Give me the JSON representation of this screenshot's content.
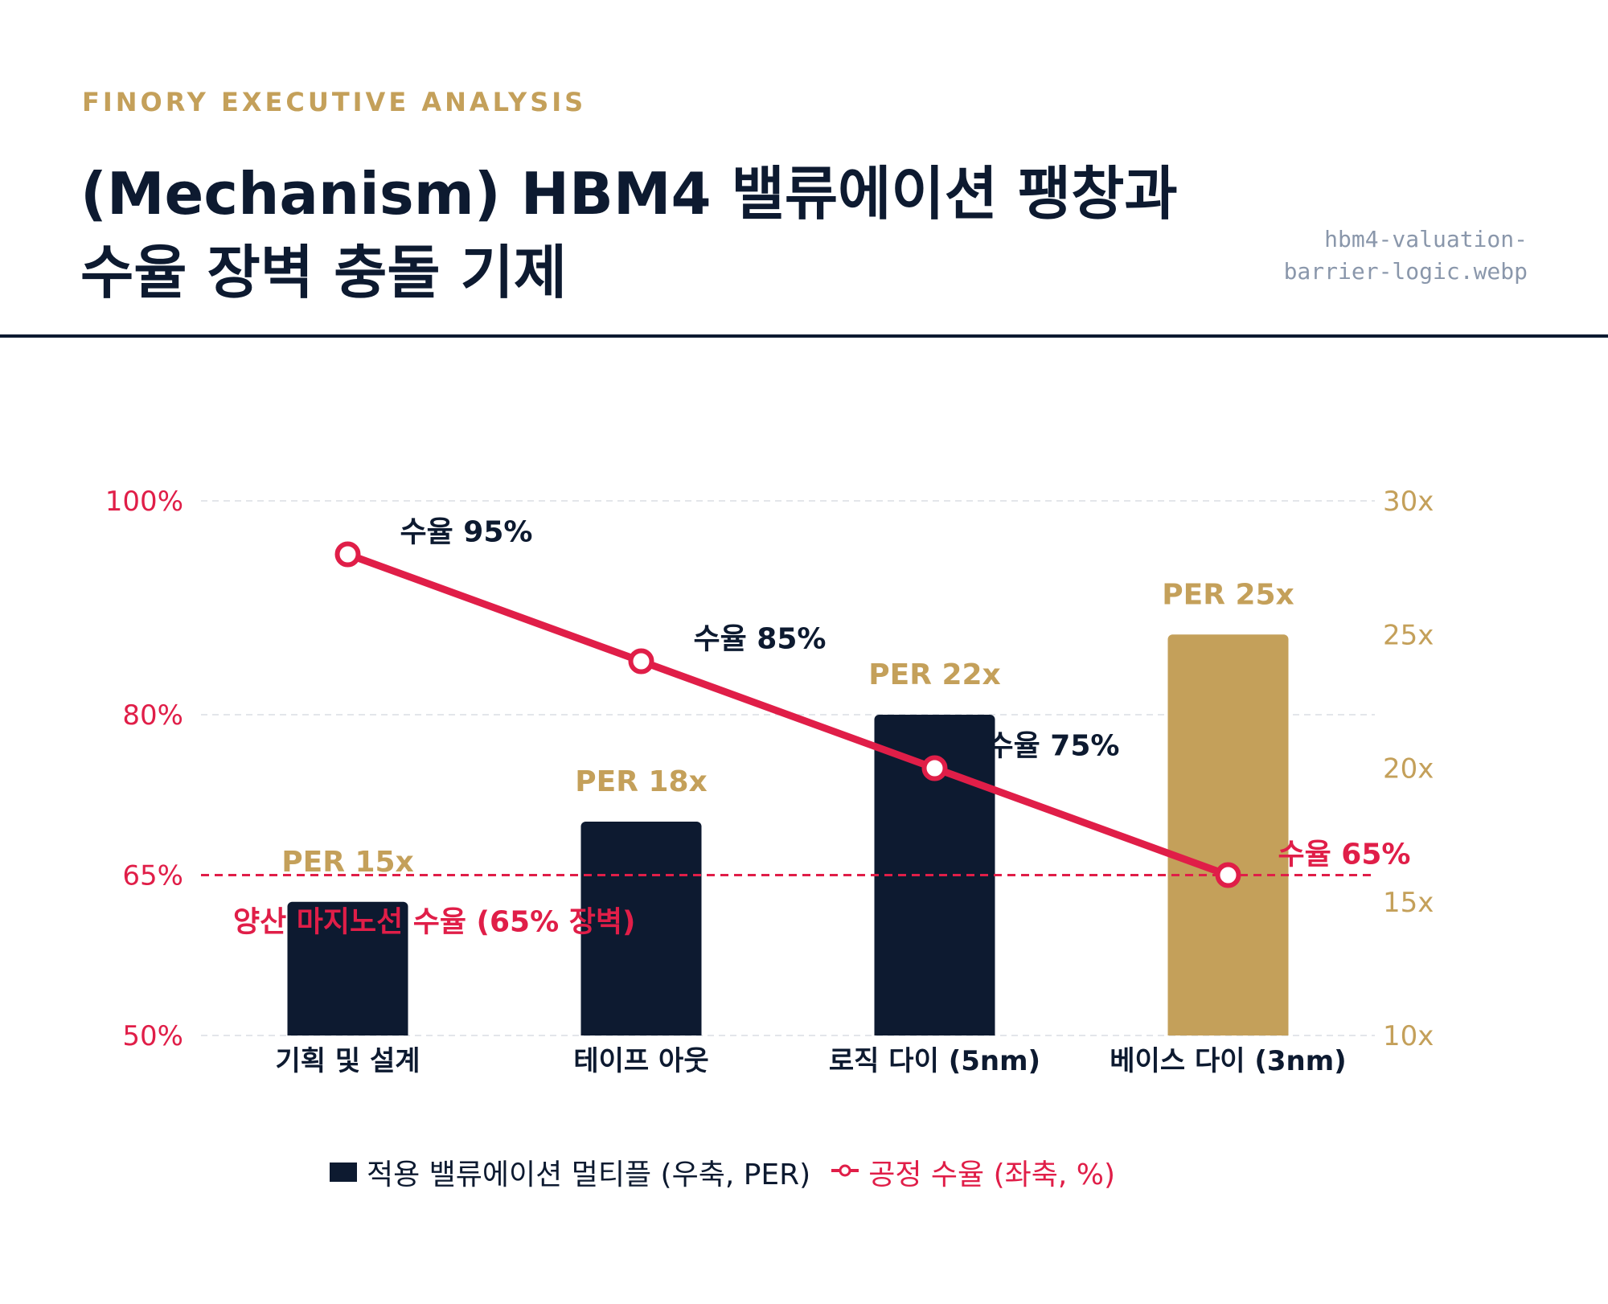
{
  "header": {
    "kicker": "FINORY EXECUTIVE ANALYSIS",
    "title_line1": "(Mechanism) HBM4 밸류에이션 팽창과",
    "title_line2": "수율 장벽 충돌 기제",
    "filename_line1": "hbm4-valuation-",
    "filename_line2": "barrier-logic.webp"
  },
  "colors": {
    "navy": "#0d1a30",
    "gold": "#c4a05a",
    "crimson": "#e01e48",
    "grid": "#e3e6ea"
  },
  "chart_data": {
    "type": "bar",
    "categories": [
      "기획 및 설계",
      "테이프 아웃",
      "로직 다이 (5nm)",
      "베이스 다이 (3nm)"
    ],
    "series": [
      {
        "name": "적용 밸류에이션 멀티플 (우축, PER)",
        "type": "bar",
        "axis": "right",
        "values": [
          15,
          18,
          22,
          25
        ],
        "labels": [
          "PER 15x",
          "PER 18x",
          "PER 22x",
          "PER 25x"
        ],
        "colors": [
          "#0d1a30",
          "#0d1a30",
          "#0d1a30",
          "#c4a05a"
        ]
      },
      {
        "name": "공정 수율 (좌축, %)",
        "type": "line",
        "axis": "left",
        "values": [
          95,
          85,
          75,
          65
        ],
        "labels": [
          "수율 95%",
          "수율 85%",
          "수율 75%",
          "수율 65%"
        ]
      }
    ],
    "left_axis": {
      "min": 50,
      "max": 100,
      "ticks": [
        50,
        65,
        80,
        100
      ],
      "tick_labels": [
        "50%",
        "65%",
        "80%",
        "100%"
      ]
    },
    "right_axis": {
      "min": 10,
      "max": 30,
      "ticks": [
        10,
        15,
        20,
        25,
        30
      ],
      "tick_labels": [
        "10x",
        "15x",
        "20x",
        "25x",
        "30x"
      ]
    },
    "threshold": {
      "value": 65,
      "axis": "left",
      "label": "양산 마지노선 수율 (65% 장벽)"
    },
    "grid": true,
    "legend_position": "bottom"
  }
}
